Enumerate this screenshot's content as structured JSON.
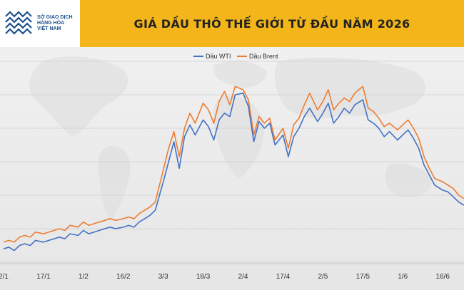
{
  "header": {
    "title": "GIÁ DẦU THÔ THẾ GIỚI TỪ ĐẦU NĂM 2026",
    "logo_lines": [
      "SỞ GIAO DỊCH",
      "HÀNG HÓA",
      "VIỆT NAM"
    ]
  },
  "colors": {
    "header_band": "#f3b519",
    "wti": "#4472c4",
    "brent": "#ed7d31",
    "logo": "#1b4f8c"
  },
  "chart_data": {
    "type": "line",
    "title": "GIÁ DẦU THÔ THẾ GIỚI TỪ ĐẦU NĂM 2026",
    "xlabel": "",
    "ylabel": "",
    "grid": true,
    "legend_position": "top-center",
    "x_ticks": [
      "2/1",
      "17/1",
      "1/2",
      "16/2",
      "3/3",
      "18/3",
      "2/4",
      "17/4",
      "2/5",
      "17/5",
      "1/6",
      "16/6"
    ],
    "x_range": [
      "2/1",
      "24/6"
    ],
    "ylim": [
      0,
      12
    ],
    "x": [
      "2/1",
      "4/1",
      "6/1",
      "8/1",
      "10/1",
      "12/1",
      "14/1",
      "17/1",
      "19/1",
      "21/1",
      "23/1",
      "25/1",
      "27/1",
      "30/1",
      "1/2",
      "3/2",
      "5/2",
      "7/2",
      "9/2",
      "11/2",
      "13/2",
      "16/2",
      "18/2",
      "20/2",
      "22/2",
      "24/2",
      "26/2",
      "28/2",
      "3/3",
      "5/3",
      "7/3",
      "9/3",
      "11/3",
      "13/3",
      "15/3",
      "18/3",
      "20/3",
      "22/3",
      "24/3",
      "26/3",
      "28/3",
      "30/3",
      "2/4",
      "4/4",
      "6/4",
      "8/4",
      "10/4",
      "12/4",
      "14/4",
      "17/4",
      "19/4",
      "21/4",
      "23/4",
      "25/4",
      "27/4",
      "30/4",
      "2/5",
      "4/5",
      "6/5",
      "8/5",
      "10/5",
      "12/5",
      "14/5",
      "17/5",
      "19/5",
      "21/5",
      "23/5",
      "25/5",
      "27/5",
      "30/5",
      "1/6",
      "3/6",
      "5/6",
      "7/6",
      "9/6",
      "11/6",
      "13/6",
      "16/6",
      "18/6",
      "20/6",
      "22/6",
      "24/6"
    ],
    "series": [
      {
        "name": "Dầu WTI",
        "color": "#4472c4",
        "values": [
          0.8,
          0.9,
          0.7,
          1.0,
          1.1,
          1.0,
          1.3,
          1.2,
          1.3,
          1.4,
          1.5,
          1.4,
          1.7,
          1.6,
          1.9,
          1.7,
          1.8,
          1.9,
          2.0,
          2.1,
          2.0,
          2.1,
          2.2,
          2.1,
          2.4,
          2.6,
          2.8,
          3.1,
          4.8,
          6.0,
          7.2,
          5.6,
          7.5,
          8.2,
          7.6,
          8.5,
          8.1,
          7.3,
          8.5,
          8.9,
          8.7,
          10.0,
          10.1,
          9.3,
          7.2,
          8.4,
          8.0,
          8.3,
          7.0,
          7.6,
          6.3,
          7.5,
          8.0,
          8.7,
          9.2,
          8.4,
          8.9,
          9.5,
          8.3,
          8.7,
          9.2,
          8.9,
          9.4,
          9.7,
          8.5,
          8.3,
          8.0,
          7.5,
          7.8,
          7.3,
          7.6,
          7.9,
          7.4,
          6.8,
          5.8,
          5.2,
          4.6,
          4.3,
          4.2,
          3.9,
          3.6,
          3.4
        ]
      },
      {
        "name": "Dầu Brent",
        "color": "#ed7d31",
        "values": [
          1.2,
          1.3,
          1.2,
          1.5,
          1.6,
          1.5,
          1.8,
          1.7,
          1.8,
          1.9,
          2.0,
          1.9,
          2.2,
          2.1,
          2.4,
          2.2,
          2.3,
          2.4,
          2.5,
          2.6,
          2.5,
          2.6,
          2.7,
          2.6,
          2.9,
          3.1,
          3.3,
          3.6,
          5.5,
          6.8,
          7.8,
          6.3,
          8.0,
          8.9,
          8.3,
          9.5,
          9.1,
          8.3,
          9.6,
          10.2,
          9.4,
          10.5,
          10.3,
          9.7,
          7.6,
          8.7,
          8.3,
          8.6,
          7.3,
          8.0,
          6.8,
          8.2,
          8.6,
          9.4,
          10.1,
          9.1,
          9.6,
          10.3,
          9.1,
          9.5,
          9.8,
          9.6,
          10.1,
          10.5,
          9.2,
          9.0,
          8.6,
          8.1,
          8.3,
          7.9,
          8.2,
          8.5,
          8.0,
          7.4,
          6.3,
          5.6,
          5.0,
          4.8,
          4.6,
          4.4,
          4.0,
          3.8
        ]
      }
    ]
  }
}
